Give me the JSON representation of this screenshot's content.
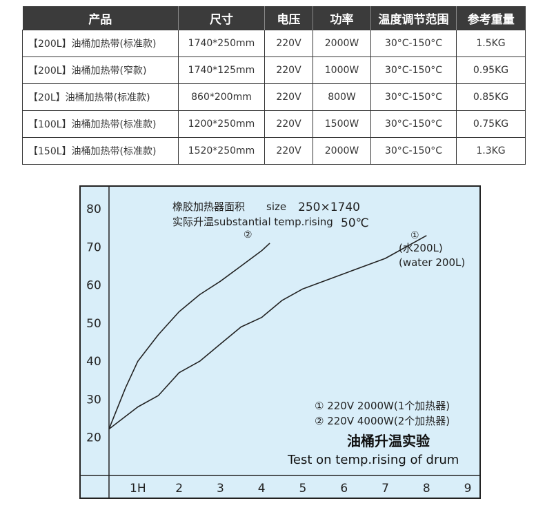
{
  "table": {
    "headers": [
      "产品",
      "尺寸",
      "电压",
      "功率",
      "温度调节范围",
      "参考重量"
    ],
    "rows": [
      [
        "【200L】油桶加热带(标准款)",
        "1740*250mm",
        "220V",
        "2000W",
        "30°C-150°C",
        "1.5KG"
      ],
      [
        "【200L】油桶加热带(窄款)",
        "1740*125mm",
        "220V",
        "1000W",
        "30°C-150°C",
        "0.95KG"
      ],
      [
        "【20L】油桶加热带(标准款)",
        "860*200mm",
        "220V",
        "800W",
        "30°C-150°C",
        "0.85KG"
      ],
      [
        "【100L】油桶加热带(标准款)",
        "1200*250mm",
        "220V",
        "1500W",
        "30°C-150°C",
        "0.75KG"
      ],
      [
        "【150L】油桶加热带(标准款)",
        "1520*250mm",
        "220V",
        "2000W",
        "30°C-150°C",
        "1.3KG"
      ]
    ]
  },
  "chart": {
    "colors": {
      "background": "#d9eef9",
      "line": "#222222",
      "frame": "#222222"
    },
    "info_line1_cn": "橡胶加热器面积",
    "info_size_label": "size",
    "info_size_value": "250×1740",
    "info_line2": "实际升温substantial temp.rising",
    "info_temp": "50℃",
    "legend1": "① 220V 2000W(1个加热器)",
    "legend2": "② 220V 4000W(2个加热器)",
    "title_cn": "油桶升温实验",
    "title_en": "Test on temp.rising of drum",
    "series1_marker": "①",
    "series1_label_cn": "(水200L)",
    "series1_label_en": "(water 200L)",
    "series2_marker": "②"
  },
  "chart_data": {
    "type": "line",
    "title": "油桶升温实验 Test on temp.rising of drum",
    "xlabel": "",
    "ylabel": "",
    "x_ticks": [
      "1H",
      "2",
      "3",
      "4",
      "5",
      "6",
      "7",
      "8",
      "9"
    ],
    "y_ticks": [
      "20",
      "30",
      "40",
      "50",
      "60",
      "70",
      "80"
    ],
    "xlim": [
      0.3,
      9.3
    ],
    "ylim": [
      10,
      86
    ],
    "grid": false,
    "series": [
      {
        "name": "①",
        "points": [
          [
            0.3,
            22.2
          ],
          [
            1.0,
            28.0
          ],
          [
            1.5,
            31.0
          ],
          [
            2.0,
            37.0
          ],
          [
            2.5,
            40.0
          ],
          [
            3.0,
            44.5
          ],
          [
            3.5,
            49.0
          ],
          [
            4.0,
            51.5
          ],
          [
            4.5,
            56.0
          ],
          [
            5.0,
            59.0
          ],
          [
            6.0,
            63.0
          ],
          [
            7.0,
            67.0
          ],
          [
            8.0,
            73.0
          ]
        ]
      },
      {
        "name": "②",
        "points": [
          [
            0.3,
            22.2
          ],
          [
            0.7,
            33.0
          ],
          [
            1.0,
            40.0
          ],
          [
            1.5,
            47.0
          ],
          [
            2.0,
            53.0
          ],
          [
            2.5,
            57.5
          ],
          [
            3.0,
            61.0
          ],
          [
            3.5,
            65.0
          ],
          [
            4.0,
            69.0
          ],
          [
            4.2,
            71.0
          ]
        ]
      }
    ]
  }
}
